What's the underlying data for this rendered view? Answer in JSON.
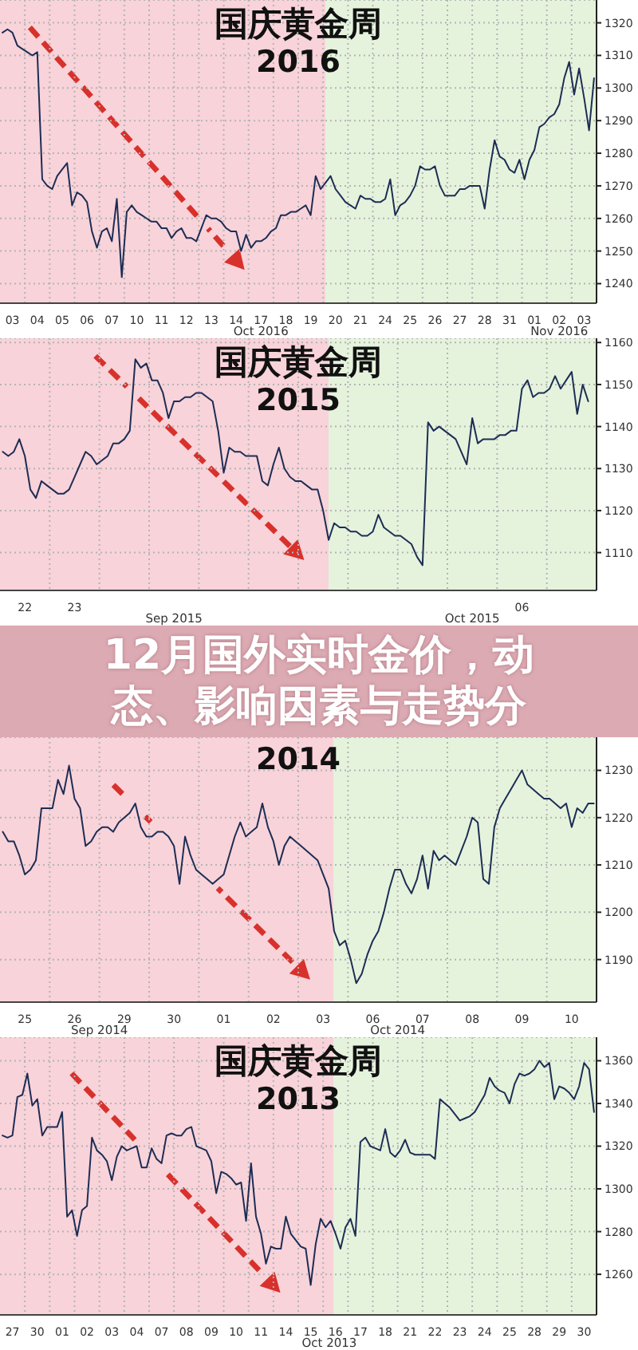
{
  "chart_data": [
    {
      "type": "line",
      "title": "国庆黄金周",
      "subtitle": "2016",
      "color": "#1d2d55",
      "categories": [
        null,
        null,
        "03",
        null,
        null,
        null,
        null,
        "04",
        null,
        null,
        null,
        null,
        "05",
        null,
        null,
        null,
        null,
        "06",
        null,
        null,
        null,
        null,
        "07",
        null,
        null,
        null,
        null,
        "10",
        null,
        null,
        null,
        null,
        "11",
        null,
        null,
        null,
        null,
        "12",
        null,
        null,
        null,
        null,
        "13",
        null,
        null,
        null,
        null,
        "14",
        null,
        null,
        null,
        null,
        "17",
        null,
        null,
        null,
        null,
        "18",
        null,
        null,
        null,
        null,
        "19",
        null,
        null,
        null,
        null,
        "20",
        null,
        null,
        null,
        null,
        "21",
        null,
        null,
        null,
        null,
        "24",
        null,
        null,
        null,
        null,
        "25",
        null,
        null,
        null,
        null,
        "26",
        null,
        null,
        null,
        null,
        "27",
        null,
        null,
        null,
        null,
        "28",
        null,
        null,
        null,
        null,
        "31",
        null,
        null,
        null,
        null,
        "01",
        null,
        null,
        null,
        null,
        "02",
        null,
        null,
        null,
        null,
        "03",
        null,
        null
      ],
      "values": [
        1317,
        1318,
        1317,
        1313,
        1312,
        1311,
        1310,
        1311,
        1272,
        1270,
        1269,
        1273,
        1275,
        1277,
        1264,
        1268,
        1267,
        1265,
        1256,
        1251,
        1256,
        1257,
        1253,
        1266,
        1242,
        1262,
        1264,
        1262,
        1261,
        1260,
        1259,
        1259,
        1257,
        1257,
        1254,
        1256,
        1257,
        1254,
        1254,
        1253,
        1257,
        1261,
        1260,
        1260,
        1259,
        1257,
        1256,
        1256,
        1250,
        1255,
        1251,
        1253,
        1253,
        1254,
        1256,
        1257,
        1261,
        1261,
        1262,
        1262,
        1263,
        1264,
        1261,
        1273,
        1269,
        1271,
        1273,
        1269,
        1267,
        1265,
        1264,
        1263,
        1267,
        1266,
        1266,
        1265,
        1265,
        1266,
        1272,
        1261,
        1264,
        1265,
        1267,
        1270,
        1276,
        1275,
        1275,
        1276,
        1270,
        1267,
        1267,
        1267,
        1269,
        1269,
        1270,
        1270,
        1270,
        1263,
        1275,
        1284,
        1279,
        1278,
        1275,
        1274,
        1278,
        1272,
        1278,
        1281,
        1288,
        1289,
        1291,
        1292,
        1295,
        1303,
        1308,
        1298,
        1306,
        1297,
        1287,
        1303
      ],
      "ylim": [
        1234,
        1327
      ],
      "yticks": [
        1240,
        1250,
        1260,
        1270,
        1280,
        1290,
        1300,
        1310,
        1320
      ],
      "annotations": [
        "Oct 2016",
        "Nov 2016"
      ],
      "grid": true
    },
    {
      "type": "line",
      "title": "国庆黄金周",
      "subtitle": "2015",
      "color": "#1d2d55",
      "categories": [
        null,
        null,
        null,
        null,
        "22",
        null,
        null,
        null,
        null,
        null,
        null,
        null,
        null,
        "23",
        null,
        null,
        null,
        null,
        null,
        null,
        null,
        null,
        null,
        null,
        null,
        null,
        null,
        null,
        null,
        null,
        null,
        null,
        null,
        null,
        null,
        null,
        null,
        null,
        null,
        null,
        null,
        null,
        null,
        null,
        null,
        null,
        null,
        null,
        null,
        null,
        null,
        null,
        null,
        null,
        null,
        null,
        null,
        null,
        null,
        null,
        null,
        null,
        null,
        null,
        null,
        null,
        null,
        null,
        null,
        null,
        null,
        null,
        null,
        null,
        null,
        null,
        null,
        null,
        null,
        null,
        null,
        null,
        null,
        null,
        null,
        null,
        null,
        null,
        null,
        null,
        null,
        null,
        null,
        null,
        "06",
        null,
        null,
        null,
        null,
        null,
        null,
        null,
        null,
        null,
        null,
        null,
        null,
        null
      ],
      "values": [
        1134,
        1133,
        1134,
        1137,
        1133,
        1125,
        1123,
        1127,
        1126,
        1125,
        1124,
        1124,
        1125,
        1128,
        1131,
        1134,
        1133,
        1131,
        1132,
        1133,
        1136,
        1136,
        1137,
        1139,
        1156,
        1154,
        1155,
        1151,
        1151,
        1148,
        1142,
        1146,
        1146,
        1147,
        1147,
        1148,
        1148,
        1147,
        1146,
        1139,
        1129,
        1135,
        1134,
        1134,
        1133,
        1133,
        1133,
        1127,
        1126,
        1131,
        1135,
        1130,
        1128,
        1127,
        1127,
        1126,
        1125,
        1125,
        1120,
        1113,
        1117,
        1116,
        1116,
        1115,
        1115,
        1114,
        1114,
        1115,
        1119,
        1116,
        1115,
        1114,
        1114,
        1113,
        1112,
        1109,
        1107,
        1141,
        1139,
        1140,
        1139,
        1138,
        1137,
        1134,
        1131,
        1142,
        1136,
        1137,
        1137,
        1137,
        1138,
        1138,
        1139,
        1139,
        1149,
        1151,
        1147,
        1148,
        1148,
        1149,
        1152,
        1149,
        1151,
        1153,
        1143,
        1150,
        1146,
        null
      ],
      "ylim": [
        1101,
        1161
      ],
      "yticks": [
        1110,
        1120,
        1130,
        1140,
        1150,
        1160
      ],
      "annotations": [
        "Sep 2015",
        "Oct 2015"
      ],
      "grid": true
    },
    {
      "type": "line",
      "subtitle": "2014",
      "color": "#1d2d55",
      "categories": [
        null,
        null,
        null,
        null,
        "25",
        null,
        null,
        null,
        null,
        null,
        null,
        null,
        null,
        "26",
        null,
        null,
        null,
        null,
        null,
        null,
        null,
        null,
        "29",
        null,
        null,
        null,
        null,
        null,
        null,
        null,
        null,
        "30",
        null,
        null,
        null,
        null,
        null,
        null,
        null,
        null,
        "01",
        null,
        null,
        null,
        null,
        null,
        null,
        null,
        null,
        "02",
        null,
        null,
        null,
        null,
        null,
        null,
        null,
        null,
        "03",
        null,
        null,
        null,
        null,
        null,
        null,
        null,
        null,
        "06",
        null,
        null,
        null,
        null,
        null,
        null,
        null,
        null,
        "07",
        null,
        null,
        null,
        null,
        null,
        null,
        null,
        null,
        "08",
        null,
        null,
        null,
        null,
        null,
        null,
        null,
        null,
        "09",
        null,
        null,
        null,
        null,
        null,
        null,
        null,
        null,
        "10",
        null,
        null,
        null,
        null
      ],
      "values": [
        1217,
        1215,
        1215,
        1212,
        1208,
        1209,
        1211,
        1222,
        1222,
        1222,
        1228,
        1225,
        1231,
        1224,
        1222,
        1214,
        1215,
        1217,
        1218,
        1218,
        1217,
        1219,
        1220,
        1221,
        1223,
        1218,
        1216,
        1216,
        1217,
        1217,
        1216,
        1214,
        1206,
        1216,
        1212,
        1209,
        1208,
        1207,
        1206,
        1207,
        1208,
        1212,
        1216,
        1219,
        1216,
        1217,
        1218,
        1223,
        1218,
        1215,
        1210,
        1214,
        1216,
        1215,
        1214,
        1213,
        1212,
        1211,
        1208,
        1205,
        1196,
        1193,
        1194,
        1190,
        1185,
        1187,
        1191,
        1194,
        1196,
        1200,
        1205,
        1209,
        1209,
        1206,
        1204,
        1207,
        1212,
        1205,
        1213,
        1211,
        1212,
        1211,
        1210,
        1213,
        1216,
        1220,
        1219,
        1207,
        1206,
        1218,
        1222,
        1224,
        1226,
        1228,
        1230,
        1227,
        1226,
        1225,
        1224,
        1224,
        1223,
        1222,
        1223,
        1218,
        1222,
        1221,
        1223,
        1223
      ],
      "ylim": [
        1181,
        1237
      ],
      "yticks": [
        1190,
        1200,
        1210,
        1220,
        1230
      ],
      "annotations": [
        "12月国外实时金价，动态、影响因素与走势分",
        "Sep 2014",
        "Oct 2014"
      ],
      "grid": true
    },
    {
      "type": "line",
      "title": "国庆黄金周",
      "subtitle": "2013",
      "color": "#1d2d55",
      "categories": [
        null,
        null,
        "27",
        null,
        null,
        null,
        null,
        "30",
        null,
        null,
        null,
        null,
        "01",
        null,
        null,
        null,
        null,
        "02",
        null,
        null,
        null,
        null,
        "03",
        null,
        null,
        null,
        null,
        "04",
        null,
        null,
        null,
        null,
        "07",
        null,
        null,
        null,
        null,
        "08",
        null,
        null,
        null,
        null,
        "09",
        null,
        null,
        null,
        null,
        "10",
        null,
        null,
        null,
        null,
        "11",
        null,
        null,
        null,
        null,
        "14",
        null,
        null,
        null,
        null,
        "15",
        null,
        null,
        null,
        null,
        "16",
        null,
        null,
        null,
        null,
        "17",
        null,
        null,
        null,
        null,
        "18",
        null,
        null,
        null,
        null,
        "21",
        null,
        null,
        null,
        null,
        "22",
        null,
        null,
        null,
        null,
        "23",
        null,
        null,
        null,
        null,
        "24",
        null,
        null,
        null,
        null,
        "25",
        null,
        null,
        null,
        null,
        "28",
        null,
        null,
        null,
        null,
        "29",
        null,
        null,
        null,
        null,
        "30",
        null,
        null
      ],
      "values": [
        1325,
        1324,
        1325,
        1343,
        1344,
        1354,
        1339,
        1342,
        1325,
        1329,
        1329,
        1329,
        1336,
        1287,
        1290,
        1278,
        1290,
        1292,
        1324,
        1318,
        1316,
        1313,
        1304,
        1315,
        1320,
        1318,
        1319,
        1320,
        1310,
        1310,
        1319,
        1314,
        1312,
        1325,
        1326,
        1325,
        1325,
        1328,
        1329,
        1320,
        1319,
        1318,
        1313,
        1298,
        1308,
        1307,
        1305,
        1302,
        1303,
        1285,
        1312,
        1287,
        1279,
        1265,
        1273,
        1272,
        1272,
        1287,
        1279,
        1276,
        1273,
        1272,
        1255,
        1274,
        1286,
        1282,
        1285,
        1279,
        1272,
        1282,
        1286,
        1278,
        1322,
        1324,
        1320,
        1319,
        1318,
        1328,
        1317,
        1315,
        1318,
        1323,
        1317,
        1316,
        1316,
        1316,
        1316,
        1314,
        1342,
        1340,
        1338,
        1335,
        1332,
        1333,
        1334,
        1336,
        1340,
        1344,
        1352,
        1348,
        1346,
        1345,
        1340,
        1349,
        1354,
        1353,
        1354,
        1356,
        1360,
        1357,
        1359,
        1342,
        1348,
        1347,
        1345,
        1342,
        1348,
        1359,
        1356,
        1336
      ],
      "ylim": [
        1241,
        1371
      ],
      "yticks": [
        1260,
        1280,
        1300,
        1320,
        1340,
        1360
      ],
      "annotations": [
        "Oct 2013"
      ],
      "grid": true
    }
  ]
}
